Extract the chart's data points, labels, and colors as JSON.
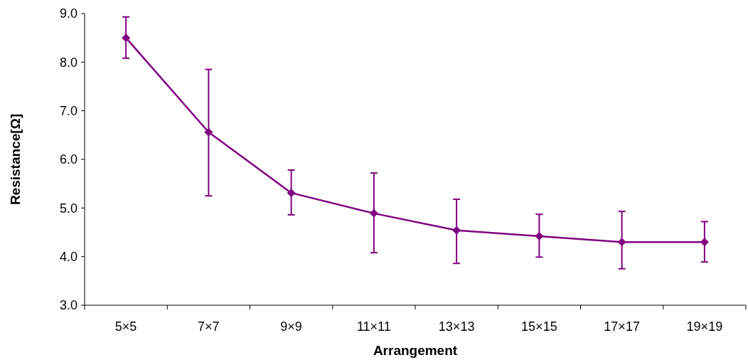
{
  "chart_data": {
    "type": "line",
    "xlabel": "Arrangement",
    "ylabel": "Resistance[Ω]",
    "categories": [
      "5×5",
      "7×7",
      "9×9",
      "11×11",
      "13×13",
      "15×15",
      "17×17",
      "19×19"
    ],
    "series": [
      {
        "color": "#800080",
        "values": [
          8.5,
          6.56,
          5.31,
          4.89,
          4.54,
          4.42,
          4.3,
          4.3
        ],
        "errors": [
          [
            8.08,
            8.93
          ],
          [
            5.25,
            7.85
          ],
          [
            4.86,
            5.78
          ],
          [
            4.08,
            5.72
          ],
          [
            3.86,
            5.18
          ],
          [
            3.99,
            4.87
          ],
          [
            3.75,
            4.93
          ],
          [
            3.89,
            4.72
          ]
        ]
      }
    ],
    "ylim": [
      3,
      9
    ],
    "yticks": [
      {
        "value": 3,
        "label": "3.0"
      },
      {
        "value": 4,
        "label": "4.0"
      },
      {
        "value": 5,
        "label": "5.0"
      },
      {
        "value": 6,
        "label": "6.0"
      },
      {
        "value": 7,
        "label": "7.0"
      },
      {
        "value": 8,
        "label": "8.0"
      },
      {
        "value": 9,
        "label": "9.0"
      }
    ],
    "marker": "diamond",
    "line_style": "solid",
    "grid": false
  }
}
